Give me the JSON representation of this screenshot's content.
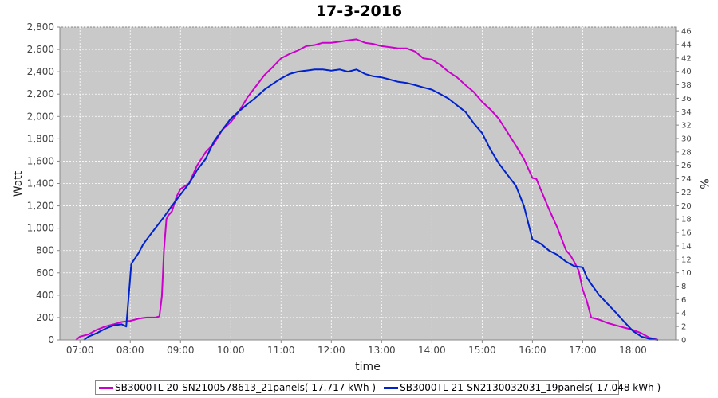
{
  "chart_data": {
    "type": "line",
    "title": "17-3-2016",
    "xlabel": "time",
    "ylabel": "Watt",
    "ylabel_right": "%",
    "xlim": [
      6.6,
      18.85
    ],
    "ylim": [
      0,
      2800
    ],
    "ylim_right": [
      0,
      46.6
    ],
    "x_ticks": [
      "07:00",
      "08:00",
      "09:00",
      "10:00",
      "11:00",
      "12:00",
      "13:00",
      "14:00",
      "15:00",
      "16:00",
      "17:00",
      "18:00"
    ],
    "x_tick_values": [
      7,
      8,
      9,
      10,
      11,
      12,
      13,
      14,
      15,
      16,
      17,
      18
    ],
    "y_ticks": [
      "0",
      "200",
      "400",
      "600",
      "800",
      "1,000",
      "1,200",
      "1,400",
      "1,600",
      "1,800",
      "2,000",
      "2,200",
      "2,400",
      "2,600",
      "2,800"
    ],
    "y_tick_values": [
      0,
      200,
      400,
      600,
      800,
      1000,
      1200,
      1400,
      1600,
      1800,
      2000,
      2200,
      2400,
      2600,
      2800
    ],
    "y_ticks_right": [
      "0",
      "2",
      "4",
      "6",
      "8",
      "10",
      "12",
      "14",
      "16",
      "18",
      "20",
      "22",
      "24",
      "26",
      "28",
      "30",
      "32",
      "34",
      "36",
      "38",
      "40",
      "42",
      "44",
      "46"
    ],
    "y_tick_values_right": [
      0,
      2,
      4,
      6,
      8,
      10,
      12,
      14,
      16,
      18,
      20,
      22,
      24,
      26,
      28,
      30,
      32,
      34,
      36,
      38,
      40,
      42,
      44,
      46
    ],
    "grid": true,
    "legend_position": "bottom",
    "series": [
      {
        "name": "SB3000TL-20-SN2100578613_21panels( 17.717 kWh )",
        "color": "#cc00cc",
        "x": [
          6.92,
          7.0,
          7.17,
          7.33,
          7.5,
          7.67,
          7.83,
          8.0,
          8.17,
          8.33,
          8.5,
          8.58,
          8.63,
          8.67,
          8.72,
          8.75,
          8.83,
          8.92,
          9.0,
          9.17,
          9.33,
          9.5,
          9.67,
          9.83,
          10.0,
          10.17,
          10.33,
          10.5,
          10.67,
          10.83,
          11.0,
          11.17,
          11.33,
          11.5,
          11.67,
          11.83,
          12.0,
          12.17,
          12.33,
          12.5,
          12.67,
          12.83,
          13.0,
          13.17,
          13.33,
          13.5,
          13.67,
          13.83,
          14.0,
          14.17,
          14.33,
          14.5,
          14.67,
          14.83,
          15.0,
          15.17,
          15.33,
          15.5,
          15.67,
          15.83,
          16.0,
          16.08,
          16.17,
          16.33,
          16.5,
          16.67,
          16.75,
          16.83,
          16.92,
          17.0,
          17.08,
          17.17,
          17.33,
          17.5,
          17.67,
          17.83,
          18.0,
          18.17,
          18.33,
          18.5
        ],
        "values": [
          0,
          30,
          50,
          90,
          120,
          140,
          160,
          170,
          190,
          200,
          200,
          210,
          390,
          800,
          1080,
          1110,
          1150,
          1280,
          1350,
          1400,
          1560,
          1680,
          1760,
          1880,
          1950,
          2050,
          2170,
          2270,
          2370,
          2440,
          2520,
          2560,
          2590,
          2630,
          2640,
          2660,
          2660,
          2670,
          2680,
          2690,
          2660,
          2650,
          2630,
          2620,
          2610,
          2610,
          2580,
          2520,
          2510,
          2460,
          2400,
          2350,
          2280,
          2220,
          2130,
          2060,
          1980,
          1860,
          1740,
          1620,
          1450,
          1440,
          1340,
          1170,
          1000,
          800,
          760,
          700,
          620,
          450,
          350,
          200,
          180,
          150,
          130,
          110,
          90,
          60,
          20,
          0
        ]
      },
      {
        "name": "SB3000TL-21-SN2130032031_19panels( 17.048 kWh )",
        "color": "#0022cc",
        "x": [
          7.08,
          7.17,
          7.33,
          7.5,
          7.67,
          7.83,
          7.92,
          7.98,
          8.02,
          8.08,
          8.17,
          8.25,
          8.33,
          8.5,
          8.67,
          8.83,
          9.0,
          9.17,
          9.33,
          9.5,
          9.67,
          9.83,
          10.0,
          10.17,
          10.33,
          10.5,
          10.67,
          10.83,
          11.0,
          11.17,
          11.33,
          11.5,
          11.67,
          11.83,
          12.0,
          12.17,
          12.33,
          12.5,
          12.67,
          12.83,
          13.0,
          13.17,
          13.33,
          13.5,
          13.67,
          13.83,
          14.0,
          14.17,
          14.33,
          14.5,
          14.67,
          14.83,
          15.0,
          15.17,
          15.33,
          15.5,
          15.67,
          15.83,
          16.0,
          16.17,
          16.33,
          16.5,
          16.67,
          16.83,
          17.0,
          17.08,
          17.17,
          17.33,
          17.5,
          17.67,
          17.83,
          18.0,
          18.17,
          18.33,
          18.5
        ],
        "values": [
          0,
          30,
          60,
          100,
          130,
          140,
          120,
          450,
          680,
          720,
          780,
          850,
          900,
          1000,
          1100,
          1200,
          1300,
          1400,
          1520,
          1620,
          1780,
          1880,
          1980,
          2050,
          2110,
          2170,
          2240,
          2290,
          2340,
          2380,
          2400,
          2410,
          2420,
          2420,
          2410,
          2420,
          2400,
          2420,
          2380,
          2360,
          2350,
          2330,
          2310,
          2300,
          2280,
          2260,
          2240,
          2200,
          2160,
          2100,
          2040,
          1940,
          1850,
          1700,
          1580,
          1480,
          1380,
          1200,
          900,
          860,
          800,
          760,
          700,
          660,
          650,
          560,
          500,
          400,
          320,
          240,
          160,
          80,
          30,
          10,
          0
        ]
      }
    ]
  }
}
